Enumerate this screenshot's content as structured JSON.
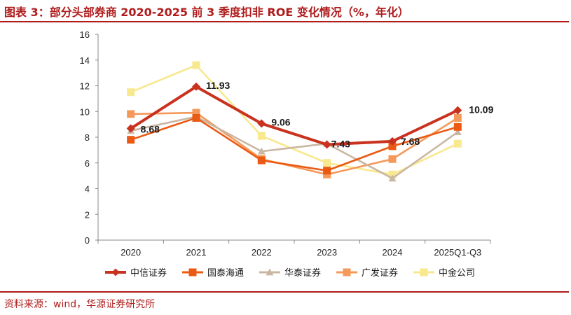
{
  "header": {
    "title": "图表 3：部分头部券商 2020-2025 前 3 季度扣非 ROE 变化情况（%，年化）"
  },
  "footer": {
    "source": "资料来源：wind，华源证券研究所"
  },
  "chart_data": {
    "type": "line",
    "title": "图表 3：部分头部券商 2020-2025 前 3 季度扣非 ROE 变化情况（%，年化）",
    "xlabel": "",
    "ylabel": "",
    "categories": [
      "2020",
      "2021",
      "2022",
      "2023",
      "2024",
      "2025Q1-Q3"
    ],
    "ylim": [
      0,
      16
    ],
    "yticks": [
      0,
      2,
      4,
      6,
      8,
      10,
      12,
      14,
      16
    ],
    "grid": false,
    "legend_position": "bottom",
    "series": [
      {
        "name": "中信证券",
        "color": "#c8321e",
        "marker": "diamond",
        "values": [
          8.68,
          11.93,
          9.06,
          7.43,
          7.68,
          10.09
        ],
        "labels": [
          "8.68",
          "11.93",
          "9.06",
          "7.43",
          "7.68",
          "10.09"
        ]
      },
      {
        "name": "国泰海通",
        "color": "#ea5a12",
        "marker": "square",
        "values": [
          7.8,
          9.5,
          6.2,
          5.4,
          7.3,
          8.8
        ]
      },
      {
        "name": "华泰证券",
        "color": "#c9b7a3",
        "marker": "triangle",
        "values": [
          8.5,
          9.6,
          6.9,
          7.5,
          4.8,
          8.4
        ]
      },
      {
        "name": "广发证券",
        "color": "#f4995a",
        "marker": "square",
        "values": [
          9.8,
          9.9,
          6.3,
          5.1,
          6.3,
          9.5
        ]
      },
      {
        "name": "中金公司",
        "color": "#f8e88e",
        "marker": "square",
        "values": [
          11.5,
          13.6,
          8.1,
          6.0,
          5.1,
          7.5
        ]
      }
    ]
  }
}
